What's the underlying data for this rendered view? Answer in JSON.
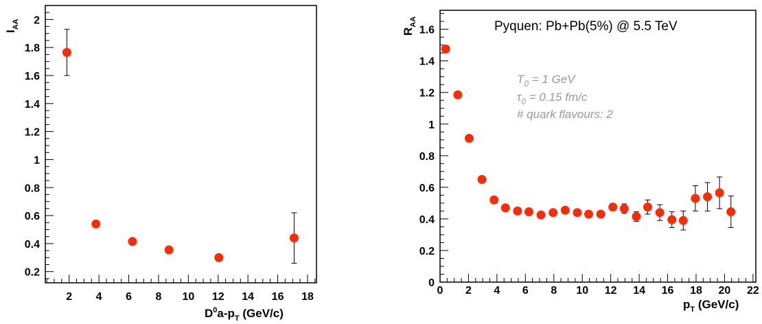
{
  "colors": {
    "marker": "#ff2a00",
    "frame": "#000000",
    "note": "#999999"
  },
  "chart_data": [
    {
      "type": "scatter",
      "xlabel_main": "D",
      "xlabel_sup": "0",
      "xlabel_mid": "a-p",
      "xlabel_sub": "T",
      "xlabel_end": " (GeV/c)",
      "ylabel_main": "I",
      "ylabel_sub": "AA",
      "xlim": [
        0.4,
        18.6
      ],
      "ylim": [
        0.12,
        2.1
      ],
      "grid": false,
      "x_ticks": [
        "2",
        "4",
        "6",
        "8",
        "10",
        "12",
        "14",
        "16",
        "18"
      ],
      "y_ticks": [
        "0.2",
        "0.4",
        "0.6",
        "0.8",
        "1",
        "1.2",
        "1.4",
        "1.6",
        "1.8",
        "2"
      ],
      "points": [
        {
          "x": 1.85,
          "y": 1.765,
          "err": 0.165
        },
        {
          "x": 3.8,
          "y": 0.54,
          "err": 0.01
        },
        {
          "x": 6.25,
          "y": 0.415,
          "err": 0.01
        },
        {
          "x": 8.7,
          "y": 0.355,
          "err": 0.01
        },
        {
          "x": 12.05,
          "y": 0.3,
          "err": 0.01
        },
        {
          "x": 17.1,
          "y": 0.44,
          "err": 0.18
        }
      ]
    },
    {
      "type": "scatter",
      "xlabel_main": "p",
      "xlabel_sub": "T",
      "xlabel_end": " (GeV/c)",
      "ylabel_main": "R",
      "ylabel_sub": "AA",
      "xlim": [
        0,
        22.2
      ],
      "ylim": [
        0,
        1.72
      ],
      "grid": false,
      "x_ticks": [
        "0",
        "2",
        "4",
        "6",
        "8",
        "10",
        "12",
        "14",
        "16",
        "18",
        "20",
        "22"
      ],
      "y_ticks": [
        "0",
        "0.2",
        "0.4",
        "0.6",
        "0.8",
        "1",
        "1.2",
        "1.4",
        "1.6"
      ],
      "legend_text": "Pyquen: Pb+Pb(5%) @ 5.5 TeV",
      "notes": {
        "line1_main": "T",
        "line1_sub": "0",
        "line1_rest": " = 1 GeV",
        "line2_main": "τ",
        "line2_sub": "0",
        "line2_rest": " = 0.15 fm/c",
        "line3": "# quark flavours: 2"
      },
      "points": [
        {
          "x": 0.4,
          "y": 1.475,
          "err": 0.01
        },
        {
          "x": 1.25,
          "y": 1.185,
          "err": 0.01
        },
        {
          "x": 2.05,
          "y": 0.91,
          "err": 0.01
        },
        {
          "x": 2.95,
          "y": 0.65,
          "err": 0.01
        },
        {
          "x": 3.8,
          "y": 0.52,
          "err": 0.01
        },
        {
          "x": 4.6,
          "y": 0.47,
          "err": 0.01
        },
        {
          "x": 5.45,
          "y": 0.45,
          "err": 0.01
        },
        {
          "x": 6.25,
          "y": 0.445,
          "err": 0.01
        },
        {
          "x": 7.1,
          "y": 0.425,
          "err": 0.01
        },
        {
          "x": 7.95,
          "y": 0.44,
          "err": 0.01
        },
        {
          "x": 8.8,
          "y": 0.455,
          "err": 0.01
        },
        {
          "x": 9.65,
          "y": 0.44,
          "err": 0.01
        },
        {
          "x": 10.45,
          "y": 0.43,
          "err": 0.01
        },
        {
          "x": 11.3,
          "y": 0.43,
          "err": 0.01
        },
        {
          "x": 12.15,
          "y": 0.475,
          "err": 0.025
        },
        {
          "x": 12.95,
          "y": 0.465,
          "err": 0.03
        },
        {
          "x": 13.8,
          "y": 0.415,
          "err": 0.03
        },
        {
          "x": 14.6,
          "y": 0.475,
          "err": 0.045
        },
        {
          "x": 15.45,
          "y": 0.44,
          "err": 0.05
        },
        {
          "x": 16.3,
          "y": 0.395,
          "err": 0.05
        },
        {
          "x": 17.1,
          "y": 0.39,
          "err": 0.06
        },
        {
          "x": 17.95,
          "y": 0.53,
          "err": 0.08
        },
        {
          "x": 18.8,
          "y": 0.54,
          "err": 0.09
        },
        {
          "x": 19.65,
          "y": 0.565,
          "err": 0.1
        },
        {
          "x": 20.45,
          "y": 0.445,
          "err": 0.1
        }
      ]
    }
  ]
}
